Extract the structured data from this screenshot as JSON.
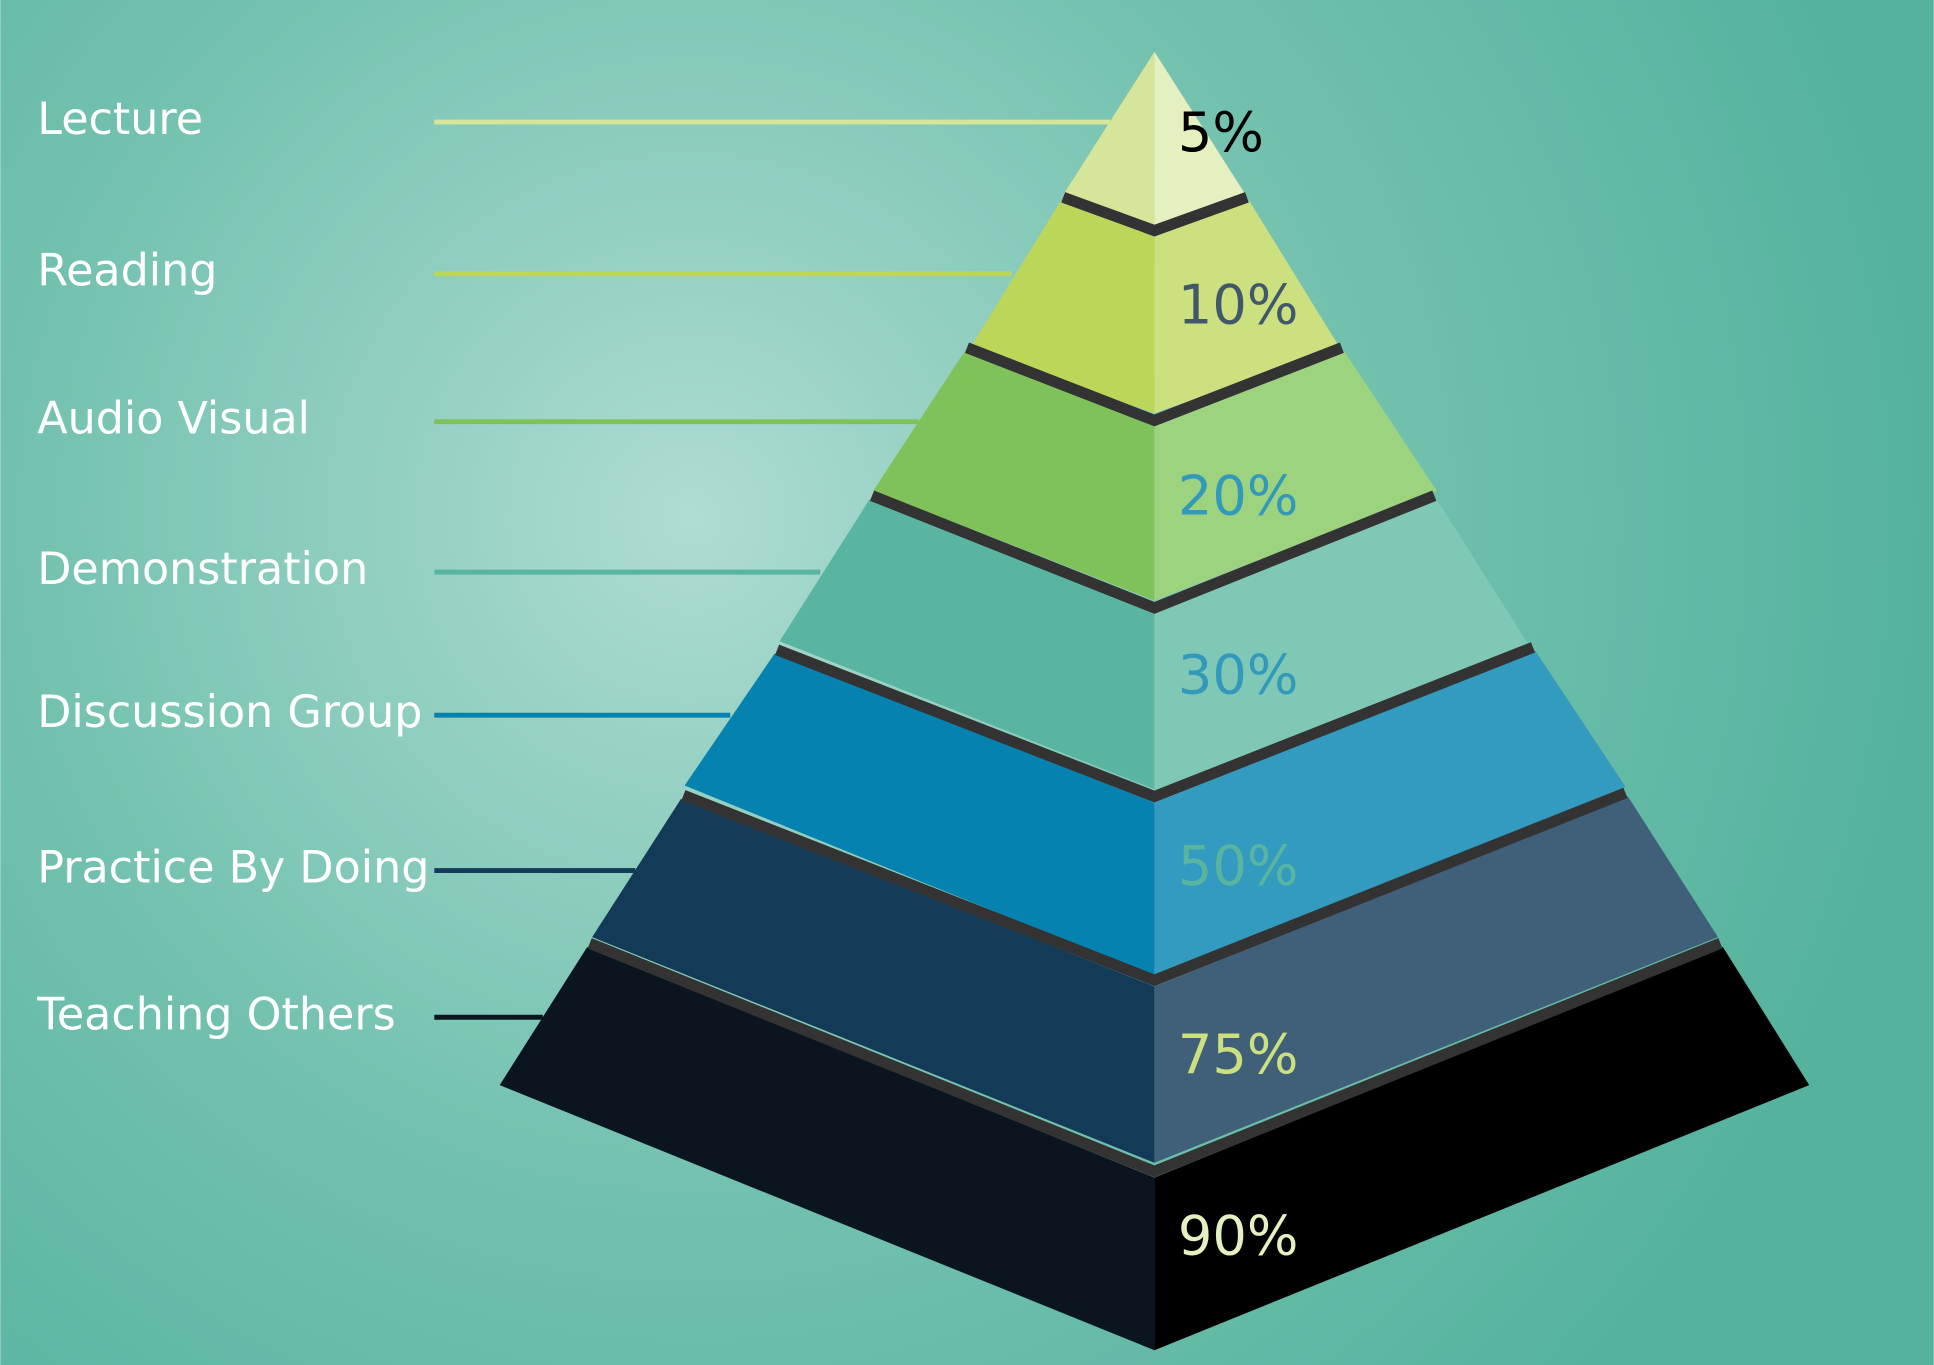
{
  "levels": [
    {
      "label": "Lecture",
      "percent": "5%"
    },
    {
      "label": "Reading",
      "percent": "10%"
    },
    {
      "label": "Audio Visual",
      "percent": "20%"
    },
    {
      "label": "Demonstration",
      "percent": "30%"
    },
    {
      "label": "Discussion Group",
      "percent": "50%"
    },
    {
      "label": "Practice By Doing",
      "percent": "75%"
    },
    {
      "label": "Teaching Others",
      "percent": "90%"
    }
  ]
}
